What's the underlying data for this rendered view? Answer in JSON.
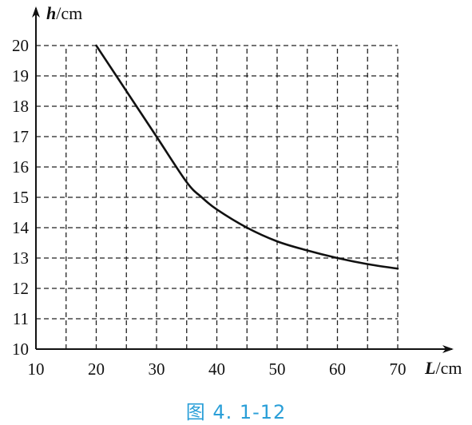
{
  "chart_data": {
    "type": "line",
    "xlabel": {
      "var": "L",
      "unit": "/cm"
    },
    "ylabel": {
      "var": "h",
      "unit": "/cm"
    },
    "xlim": [
      10,
      70
    ],
    "ylim": [
      10,
      20
    ],
    "x_ticks": [
      "10",
      "20",
      "30",
      "40",
      "50",
      "60",
      "70"
    ],
    "y_ticks": [
      "10",
      "11",
      "12",
      "13",
      "14",
      "15",
      "16",
      "17",
      "18",
      "19",
      "20"
    ],
    "grid": "dashed",
    "series": [
      {
        "x": [
          20,
          25,
          30,
          35,
          37.5,
          40,
          45,
          50,
          55,
          60,
          65,
          70
        ],
        "y": [
          20,
          18.5,
          17,
          15.5,
          15,
          14.6,
          14,
          13.55,
          13.25,
          13,
          12.8,
          12.65
        ]
      }
    ]
  },
  "caption": "图 4. 1-12"
}
